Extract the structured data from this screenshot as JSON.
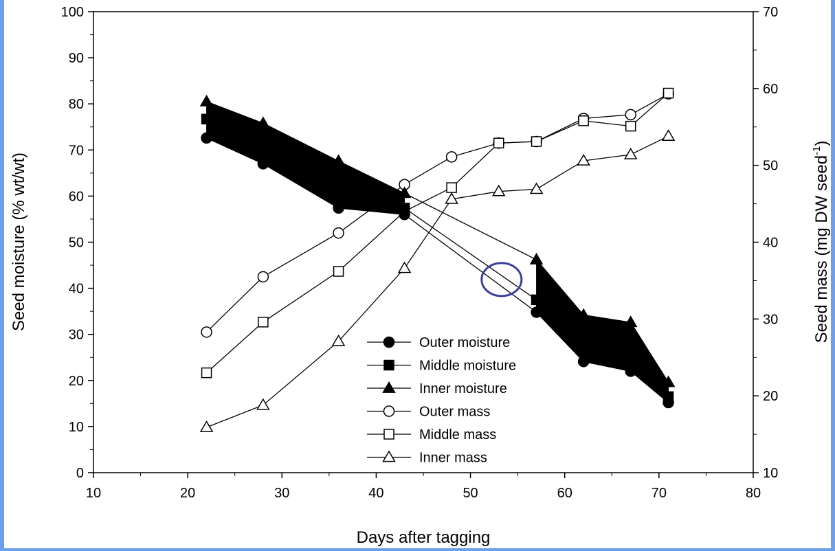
{
  "chart_data": {
    "type": "line",
    "xlabel": "Days after tagging",
    "ylabel_left": "Seed moisture (% wt/wt)",
    "ylabel_right": {
      "base": "Seed mass (mg DW seed",
      "sup": "-1",
      "tail": ")"
    },
    "xlim": [
      10,
      80
    ],
    "ylim_left": [
      0,
      100
    ],
    "ylim_right": [
      10,
      70
    ],
    "x_ticks": [
      10,
      20,
      30,
      40,
      50,
      60,
      70,
      80
    ],
    "y_ticks_left": [
      0,
      10,
      20,
      30,
      40,
      50,
      60,
      70,
      80,
      90,
      100
    ],
    "y_ticks_right": [
      10,
      20,
      30,
      40,
      50,
      60,
      70
    ],
    "grid": false,
    "legend_position": "bottom-center",
    "series": [
      {
        "name": "Outer moisture",
        "axis": "left",
        "marker": "circle",
        "filled": true,
        "x": [
          22,
          28,
          36,
          43,
          57,
          62,
          67,
          71
        ],
        "y": [
          72.6,
          67.0,
          57.4,
          56.0,
          34.8,
          24.1,
          22.0,
          15.2
        ]
      },
      {
        "name": "Middle moisture",
        "axis": "left",
        "marker": "square",
        "filled": true,
        "x": [
          22,
          28,
          36,
          43,
          57,
          62,
          67,
          71
        ],
        "y": [
          76.7,
          71.6,
          62.0,
          57.4,
          37.5,
          28.3,
          25.5,
          16.5
        ]
      },
      {
        "name": "Inner moisture",
        "axis": "left",
        "marker": "triangle",
        "filled": true,
        "x": [
          22,
          28,
          36,
          43,
          57,
          62,
          67,
          71
        ],
        "y": [
          80.5,
          75.8,
          67.6,
          60.6,
          46.2,
          34.2,
          32.6,
          19.6
        ]
      },
      {
        "name": "Outer mass",
        "axis": "right",
        "marker": "circle",
        "filled": false,
        "x": [
          22,
          28,
          36,
          43,
          48,
          53,
          57,
          62,
          67,
          71
        ],
        "y": [
          28.3,
          35.5,
          41.2,
          47.5,
          51.1,
          52.9,
          53.1,
          56.1,
          56.6,
          59.3
        ]
      },
      {
        "name": "Middle mass",
        "axis": "right",
        "marker": "square",
        "filled": false,
        "x": [
          22,
          28,
          36,
          43,
          48,
          53,
          57,
          62,
          67,
          71
        ],
        "y": [
          23.0,
          29.6,
          36.2,
          44.0,
          47.1,
          52.9,
          53.1,
          55.8,
          55.1,
          59.4
        ]
      },
      {
        "name": "Inner mass",
        "axis": "right",
        "marker": "triangle",
        "filled": false,
        "x": [
          22,
          28,
          36,
          43,
          48,
          53,
          57,
          62,
          67,
          71
        ],
        "y": [
          15.9,
          18.8,
          27.1,
          36.6,
          45.6,
          46.6,
          46.9,
          50.6,
          51.4,
          53.8
        ]
      }
    ],
    "annotation": {
      "type": "ellipse",
      "x": 53.3,
      "y": 41.9,
      "stroke": "#3b3f99"
    }
  }
}
